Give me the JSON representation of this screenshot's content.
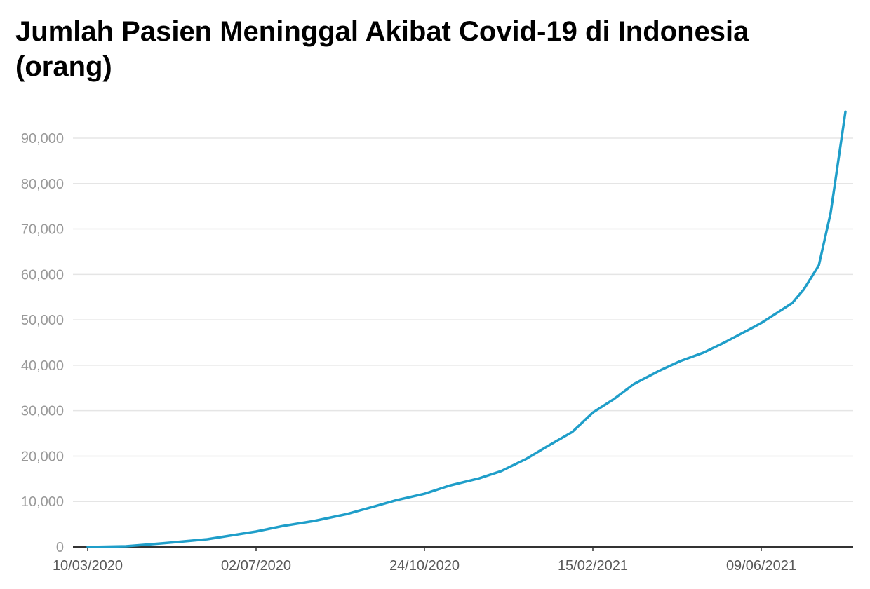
{
  "title": "Jumlah Pasien Meninggal Akibat Covid-19 di Indonesia (orang)",
  "colors": {
    "line": "#1f9ec9",
    "grid": "#e5e5e5",
    "axis": "#333333",
    "ytick": "#999999",
    "xtick": "#595959"
  },
  "chart_data": {
    "type": "line",
    "title": "Jumlah Pasien Meninggal Akibat Covid-19 di Indonesia (orang)",
    "xlabel": "",
    "ylabel": "",
    "ylim": [
      0,
      95000
    ],
    "xlim": [
      "2020-03-10",
      "2021-08-05"
    ],
    "grid": true,
    "y_ticks": [
      0,
      10000,
      20000,
      30000,
      40000,
      50000,
      60000,
      70000,
      80000,
      90000
    ],
    "y_tick_labels": [
      "0",
      "10,000",
      "20,000",
      "30,000",
      "40,000",
      "50,000",
      "60,000",
      "70,000",
      "80,000",
      "90,000"
    ],
    "x_ticks": [
      "2020-03-10",
      "2020-07-02",
      "2020-10-24",
      "2021-02-15",
      "2021-06-09"
    ],
    "x_tick_labels": [
      "10/03/2020",
      "02/07/2020",
      "24/10/2020",
      "15/02/2021",
      "09/06/2021"
    ],
    "series": [
      {
        "x": [
          "2020-03-10",
          "2020-04-05",
          "2020-04-30",
          "2020-05-30",
          "2020-07-02",
          "2020-07-20",
          "2020-08-10",
          "2020-09-01",
          "2020-09-20",
          "2020-10-05",
          "2020-10-24",
          "2020-11-10",
          "2020-11-30",
          "2020-12-15",
          "2021-01-01",
          "2021-01-15",
          "2021-02-01",
          "2021-02-15",
          "2021-03-01",
          "2021-03-15",
          "2021-04-01",
          "2021-04-15",
          "2021-05-01",
          "2021-05-15",
          "2021-06-01",
          "2021-06-09",
          "2021-06-20",
          "2021-06-30",
          "2021-07-08",
          "2021-07-18",
          "2021-07-26",
          "2021-08-05"
        ],
        "y": [
          0,
          150,
          800,
          1700,
          3400,
          4600,
          5700,
          7200,
          8900,
          10300,
          11700,
          13500,
          15100,
          16700,
          19400,
          22100,
          25300,
          29600,
          32500,
          35900,
          38800,
          40900,
          42800,
          45000,
          47900,
          49300,
          51600,
          53700,
          56800,
          62000,
          73500,
          95800
        ]
      }
    ]
  }
}
